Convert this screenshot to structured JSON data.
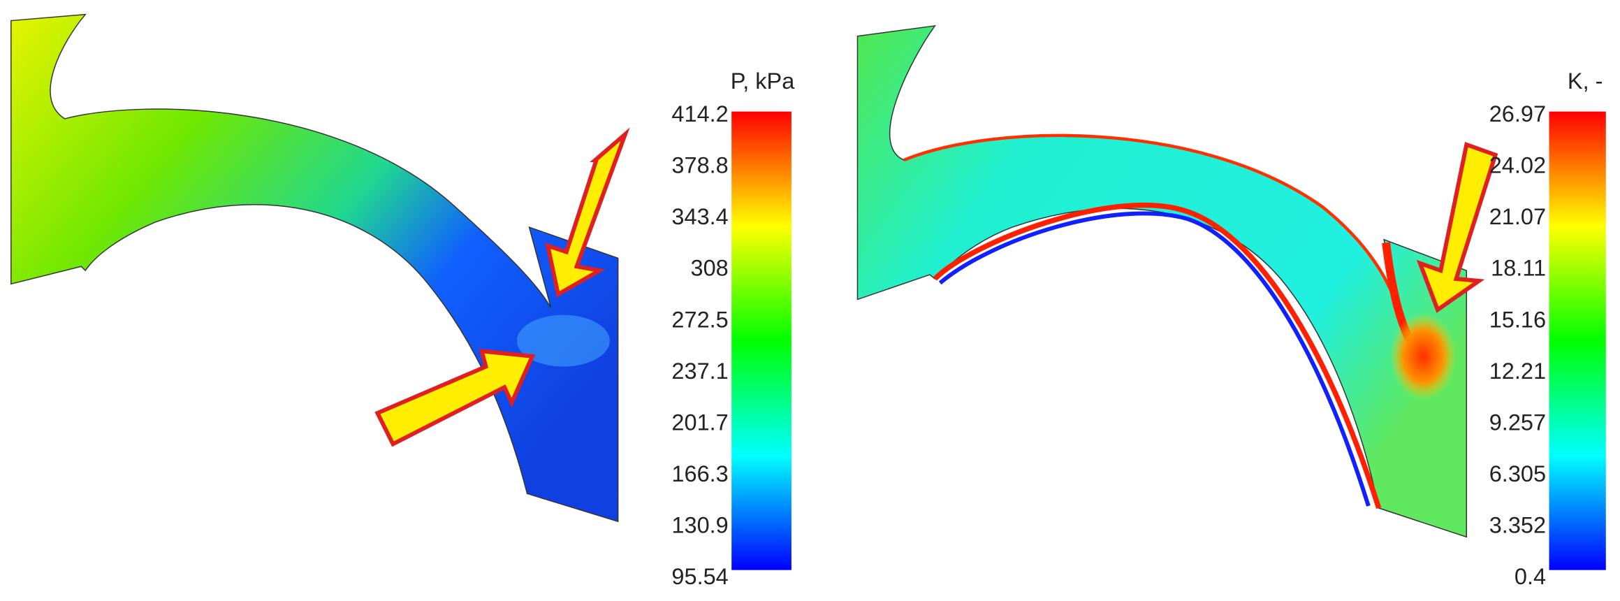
{
  "panels": [
    {
      "colorbar": {
        "title": "P, kPa",
        "labels": [
          "414.2",
          "378.8",
          "343.4",
          "308",
          "272.5",
          "237.1",
          "201.7",
          "166.3",
          "130.9",
          "95.54"
        ]
      }
    },
    {
      "colorbar": {
        "title": "K, -",
        "labels": [
          "26.97",
          "24.02",
          "21.07",
          "18.11",
          "15.16",
          "12.21",
          "9.257",
          "6.305",
          "3.352",
          "0.4"
        ]
      }
    }
  ]
}
